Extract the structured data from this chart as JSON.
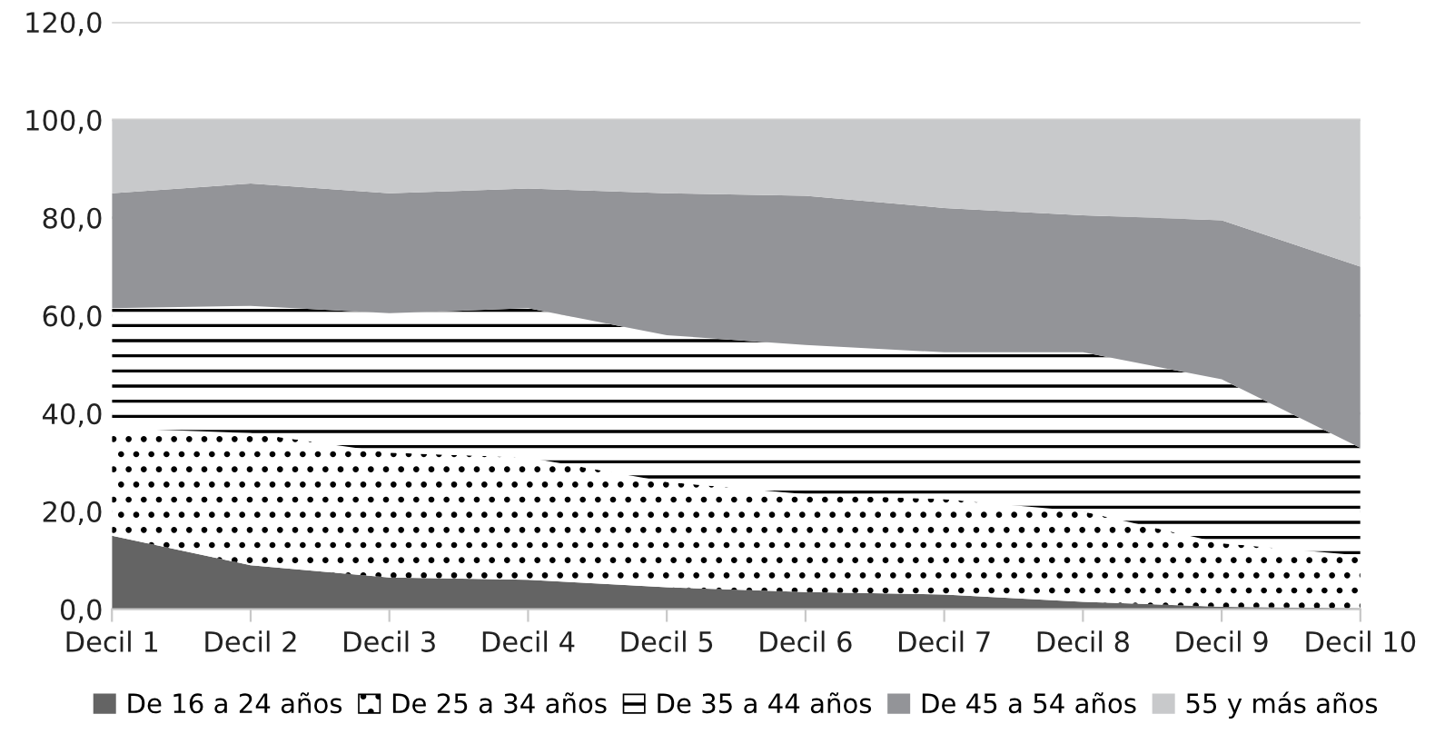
{
  "chart_data": {
    "type": "area",
    "stacked": true,
    "categories": [
      "Decil 1",
      "Decil 2",
      "Decil 3",
      "Decil 4",
      "Decil 5",
      "Decil 6",
      "Decil 7",
      "Decil 8",
      "Decil 9",
      "Decil 10"
    ],
    "series": [
      {
        "name": "De 16 a 24 años",
        "color": "#646464",
        "values": [
          15,
          9,
          6.5,
          6,
          4.5,
          3.5,
          3,
          1.5,
          0.5,
          0.2
        ]
      },
      {
        "name": "De 25 a 34 años",
        "color": "#000000",
        "values": [
          22,
          27,
          25.5,
          25,
          21.5,
          20,
          19.5,
          18.5,
          13,
          10.8
        ]
      },
      {
        "name": "De 35 a 44 años",
        "color": "#000000",
        "values": [
          24.5,
          26,
          28.5,
          30.5,
          30,
          30.5,
          30,
          32.5,
          33.5,
          22
        ]
      },
      {
        "name": "De 45 a 54 años",
        "color": "#939498",
        "values": [
          23.5,
          25,
          24.5,
          24.5,
          29,
          30.5,
          29.5,
          28,
          32.5,
          37
        ]
      },
      {
        "name": "55 y más años",
        "color": "#c8c9cb",
        "values": [
          15,
          13,
          15,
          14,
          15,
          15.5,
          18,
          19.5,
          20.5,
          30
        ]
      }
    ],
    "ylim": [
      0,
      120
    ],
    "yticks": [
      {
        "value": 0,
        "label": "0,0"
      },
      {
        "value": 20,
        "label": "20,0"
      },
      {
        "value": 40,
        "label": "40,0"
      },
      {
        "value": 60,
        "label": "60,0"
      },
      {
        "value": 80,
        "label": "80,0"
      },
      {
        "value": 100,
        "label": "100,0"
      },
      {
        "value": 120,
        "label": "120,0"
      }
    ],
    "grid": "y",
    "legend": "bottom"
  }
}
